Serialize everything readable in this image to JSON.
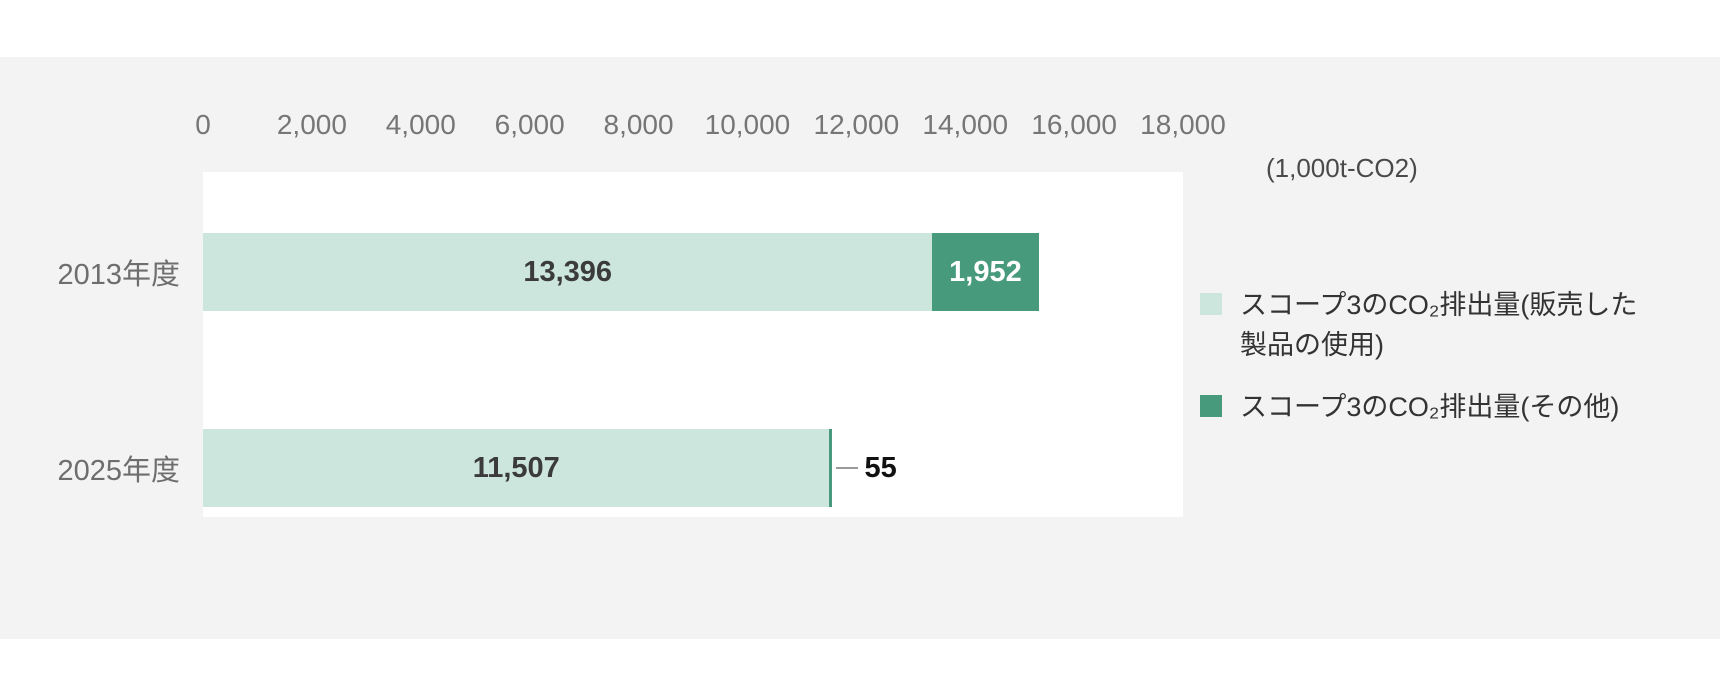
{
  "page": {
    "background": "#ffffff",
    "panel_background": "#f3f3f3"
  },
  "chart_data": {
    "type": "bar",
    "orientation": "horizontal",
    "stacked": true,
    "title": "",
    "unit_label": "(1,000t-CO2)",
    "categories": [
      "2013年度",
      "2025年度"
    ],
    "series": [
      {
        "name": "スコープ3のCO₂排出量(販売した製品の使用)",
        "legend_lines": [
          "スコープ3のCO₂排出量(販売した",
          "製品の使用)"
        ],
        "color": "#cce6dd",
        "values": [
          13396,
          11507
        ],
        "value_labels": [
          "13,396",
          "11,507"
        ],
        "label_color": "#3b3b3b"
      },
      {
        "name": "スコープ3のCO₂排出量(その他)",
        "legend_lines": [
          "スコープ3のCO₂排出量(その他)"
        ],
        "color": "#489a7c",
        "values": [
          1952,
          55
        ],
        "value_labels": [
          "1,952",
          "55"
        ],
        "label_color": "#ffffff"
      }
    ],
    "xlim": [
      0,
      18000
    ],
    "x_tick_labels": [
      "0",
      "2,000",
      "4,000",
      "6,000",
      "8,000",
      "10,000",
      "12,000",
      "14,000",
      "16,000",
      "18,000"
    ],
    "x_tick_values": [
      0,
      2000,
      4000,
      6000,
      8000,
      10000,
      12000,
      14000,
      16000,
      18000
    ],
    "grid": false,
    "legend_position": "right",
    "colors": {
      "axis_text": "#767676",
      "category_text": "#6e6e6e",
      "leader_line": "#9a9a9a",
      "outside_value_text": "#111111"
    }
  }
}
